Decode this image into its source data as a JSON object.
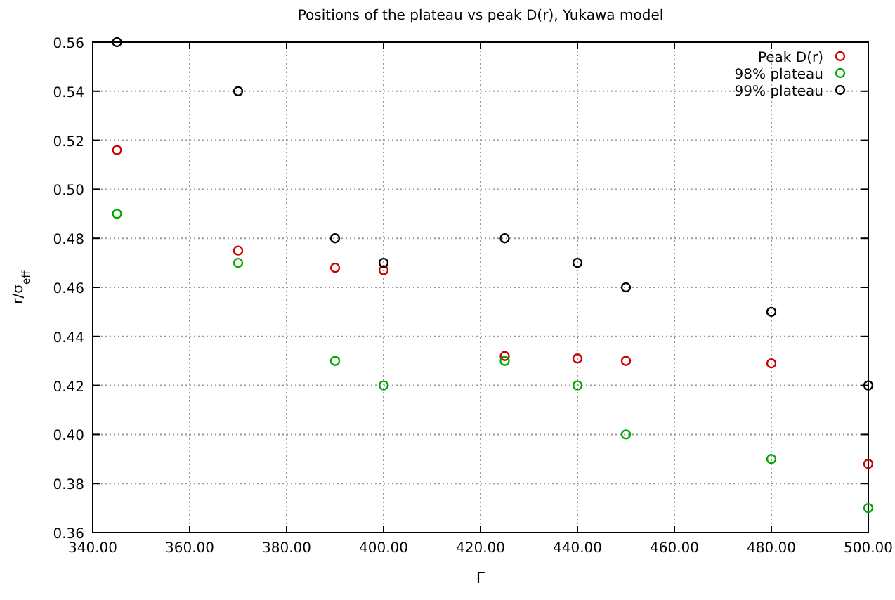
{
  "chart_data": {
    "type": "scatter",
    "title": "Positions of the plateau vs peak D(r), Yukawa model",
    "xlabel": "Γ",
    "ylabel": "r/σ$_{eff}$",
    "x": [
      345,
      370,
      390,
      400,
      425,
      440,
      450,
      480,
      500
    ],
    "series": [
      {
        "name": "Peak D(r)",
        "color": "#cc0000",
        "values": [
          0.516,
          0.475,
          0.468,
          0.467,
          0.432,
          0.431,
          0.43,
          0.429,
          0.388
        ]
      },
      {
        "name": "98% plateau",
        "color": "#00aa00",
        "values": [
          0.49,
          0.47,
          0.43,
          0.42,
          0.43,
          0.42,
          0.4,
          0.39,
          0.37
        ]
      },
      {
        "name": "99% plateau",
        "color": "#000000",
        "values": [
          0.56,
          0.54,
          0.48,
          0.47,
          0.48,
          0.47,
          0.46,
          0.45,
          0.42
        ]
      }
    ],
    "xlim": [
      340,
      500
    ],
    "xticks": [
      {
        "value": 340,
        "label": "340.00"
      },
      {
        "value": 360,
        "label": "360.00"
      },
      {
        "value": 380,
        "label": "380.00"
      },
      {
        "value": 400,
        "label": "400.00"
      },
      {
        "value": 420,
        "label": "420.00"
      },
      {
        "value": 440,
        "label": "440.00"
      },
      {
        "value": 460,
        "label": "460.00"
      },
      {
        "value": 480,
        "label": "480.00"
      },
      {
        "value": 500,
        "label": "500.00"
      }
    ],
    "ylim": [
      0.36,
      0.56
    ],
    "yticks": [
      {
        "value": 0.36,
        "label": "0.36"
      },
      {
        "value": 0.38,
        "label": "0.38"
      },
      {
        "value": 0.4,
        "label": "0.40"
      },
      {
        "value": 0.42,
        "label": "0.42"
      },
      {
        "value": 0.44,
        "label": "0.44"
      },
      {
        "value": 0.46,
        "label": "0.46"
      },
      {
        "value": 0.48,
        "label": "0.48"
      },
      {
        "value": 0.5,
        "label": "0.50"
      },
      {
        "value": 0.52,
        "label": "0.52"
      },
      {
        "value": 0.54,
        "label": "0.54"
      },
      {
        "value": 0.56,
        "label": "0.56"
      }
    ],
    "grid": true,
    "legend": "top right",
    "marker": "circle"
  }
}
